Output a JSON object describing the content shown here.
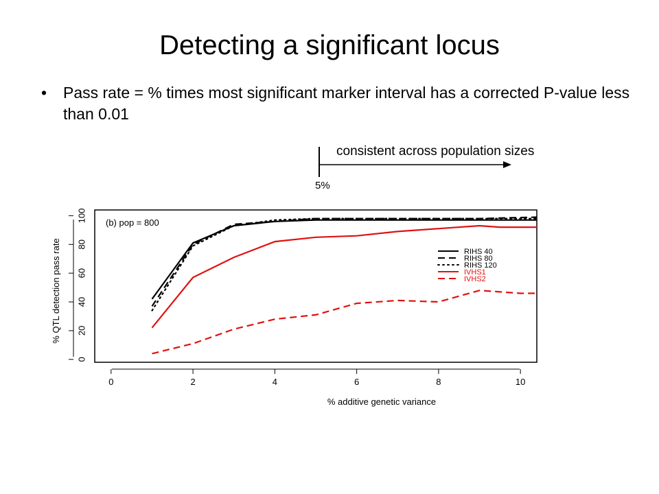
{
  "slide": {
    "title": "Detecting a significant locus",
    "bullet_marker": "•",
    "bullet_text": "Pass rate = % times most significant marker interval has a corrected P-value less than 0.01",
    "annotation": "consistent across population sizes",
    "threshold_label": "5%"
  },
  "chart_data": {
    "type": "line",
    "title": "(b) pop = 800",
    "xlabel": "% additive genetic variance",
    "ylabel": "% QTL detection pass rate",
    "xlim": [
      -0.4,
      10.4
    ],
    "ylim": [
      -2,
      104
    ],
    "xticks": [
      0,
      2,
      4,
      6,
      8,
      10
    ],
    "yticks": [
      0,
      20,
      40,
      60,
      80,
      100
    ],
    "grid": false,
    "legend_position": "right",
    "series": [
      {
        "name": "RIHS 40",
        "color": "#000000",
        "dash": "solid",
        "x": [
          1,
          2,
          3,
          4,
          5,
          6,
          7,
          8,
          9,
          10.4
        ],
        "y": [
          42,
          81,
          93,
          96,
          97,
          97,
          97,
          97,
          97,
          97
        ]
      },
      {
        "name": "RIHS 80",
        "color": "#000000",
        "dash": "dashed",
        "x": [
          1,
          2,
          3,
          4,
          5,
          6,
          7,
          8,
          9,
          10.4
        ],
        "y": [
          37,
          80,
          94,
          96,
          98,
          98,
          98,
          98,
          98,
          99
        ]
      },
      {
        "name": "RIHS 120",
        "color": "#000000",
        "dash": "dotted",
        "x": [
          1,
          2,
          3,
          4,
          5,
          6,
          7,
          8,
          9,
          10.4
        ],
        "y": [
          34,
          79,
          93,
          97,
          98,
          98,
          98,
          98,
          98,
          98
        ]
      },
      {
        "name": "IVHS1",
        "color": "#e01010",
        "dash": "solid",
        "x": [
          1,
          2,
          3,
          4,
          5,
          6,
          7,
          8,
          9,
          9.5,
          10.4
        ],
        "y": [
          22,
          57,
          71,
          82,
          85,
          86,
          89,
          91,
          93,
          92,
          92
        ]
      },
      {
        "name": "IVHS2",
        "color": "#e01010",
        "dash": "dashed",
        "x": [
          1,
          2,
          3,
          4,
          5,
          6,
          7,
          8,
          9,
          9.5,
          10,
          10.4
        ],
        "y": [
          4,
          11,
          21,
          28,
          31,
          39,
          41,
          40,
          48,
          47,
          46,
          46
        ]
      }
    ]
  }
}
